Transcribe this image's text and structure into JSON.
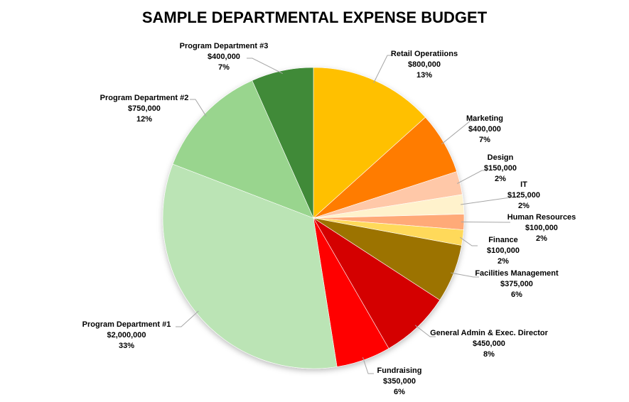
{
  "chart_data": {
    "type": "pie",
    "title": "SAMPLE DEPARTMENTAL EXPENSE BUDGET",
    "start_angle": "12 o'clock, clockwise",
    "total": 6000000,
    "slices": [
      {
        "name": "Retail Operatiions",
        "value": 800000,
        "amount": "$800,000",
        "percent": "13%",
        "color": "#FFC000"
      },
      {
        "name": "Marketing",
        "value": 400000,
        "amount": "$400,000",
        "percent": "7%",
        "color": "#FF7C00"
      },
      {
        "name": "Design",
        "value": 150000,
        "amount": "$150,000",
        "percent": "2%",
        "color": "#FFC8A8"
      },
      {
        "name": "IT",
        "value": 125000,
        "amount": "$125,000",
        "percent": "2%",
        "color": "#FFF2CC"
      },
      {
        "name": "Human Resources",
        "value": 100000,
        "amount": "$100,000",
        "percent": "2%",
        "color": "#FFAA78"
      },
      {
        "name": "Finance",
        "value": 100000,
        "amount": "$100,000",
        "percent": "2%",
        "color": "#FFD95A"
      },
      {
        "name": "Facilities Management",
        "value": 375000,
        "amount": "$375,000",
        "percent": "6%",
        "color": "#9C7300"
      },
      {
        "name": "General Admin & Exec. Director",
        "value": 450000,
        "amount": "$450,000",
        "percent": "8%",
        "color": "#D40000"
      },
      {
        "name": "Fundraising",
        "value": 350000,
        "amount": "$350,000",
        "percent": "6%",
        "color": "#FF0000"
      },
      {
        "name": "Program Department #1",
        "value": 2000000,
        "amount": "$2,000,000",
        "percent": "33%",
        "color": "#BBE4B5"
      },
      {
        "name": "Program Department #2",
        "value": 750000,
        "amount": "$750,000",
        "percent": "12%",
        "color": "#99D58E"
      },
      {
        "name": "Program Department #3",
        "value": 400000,
        "amount": "$400,000",
        "percent": "7%",
        "color": "#3F8A37"
      }
    ],
    "legend": "none (data labels with leader lines)"
  }
}
